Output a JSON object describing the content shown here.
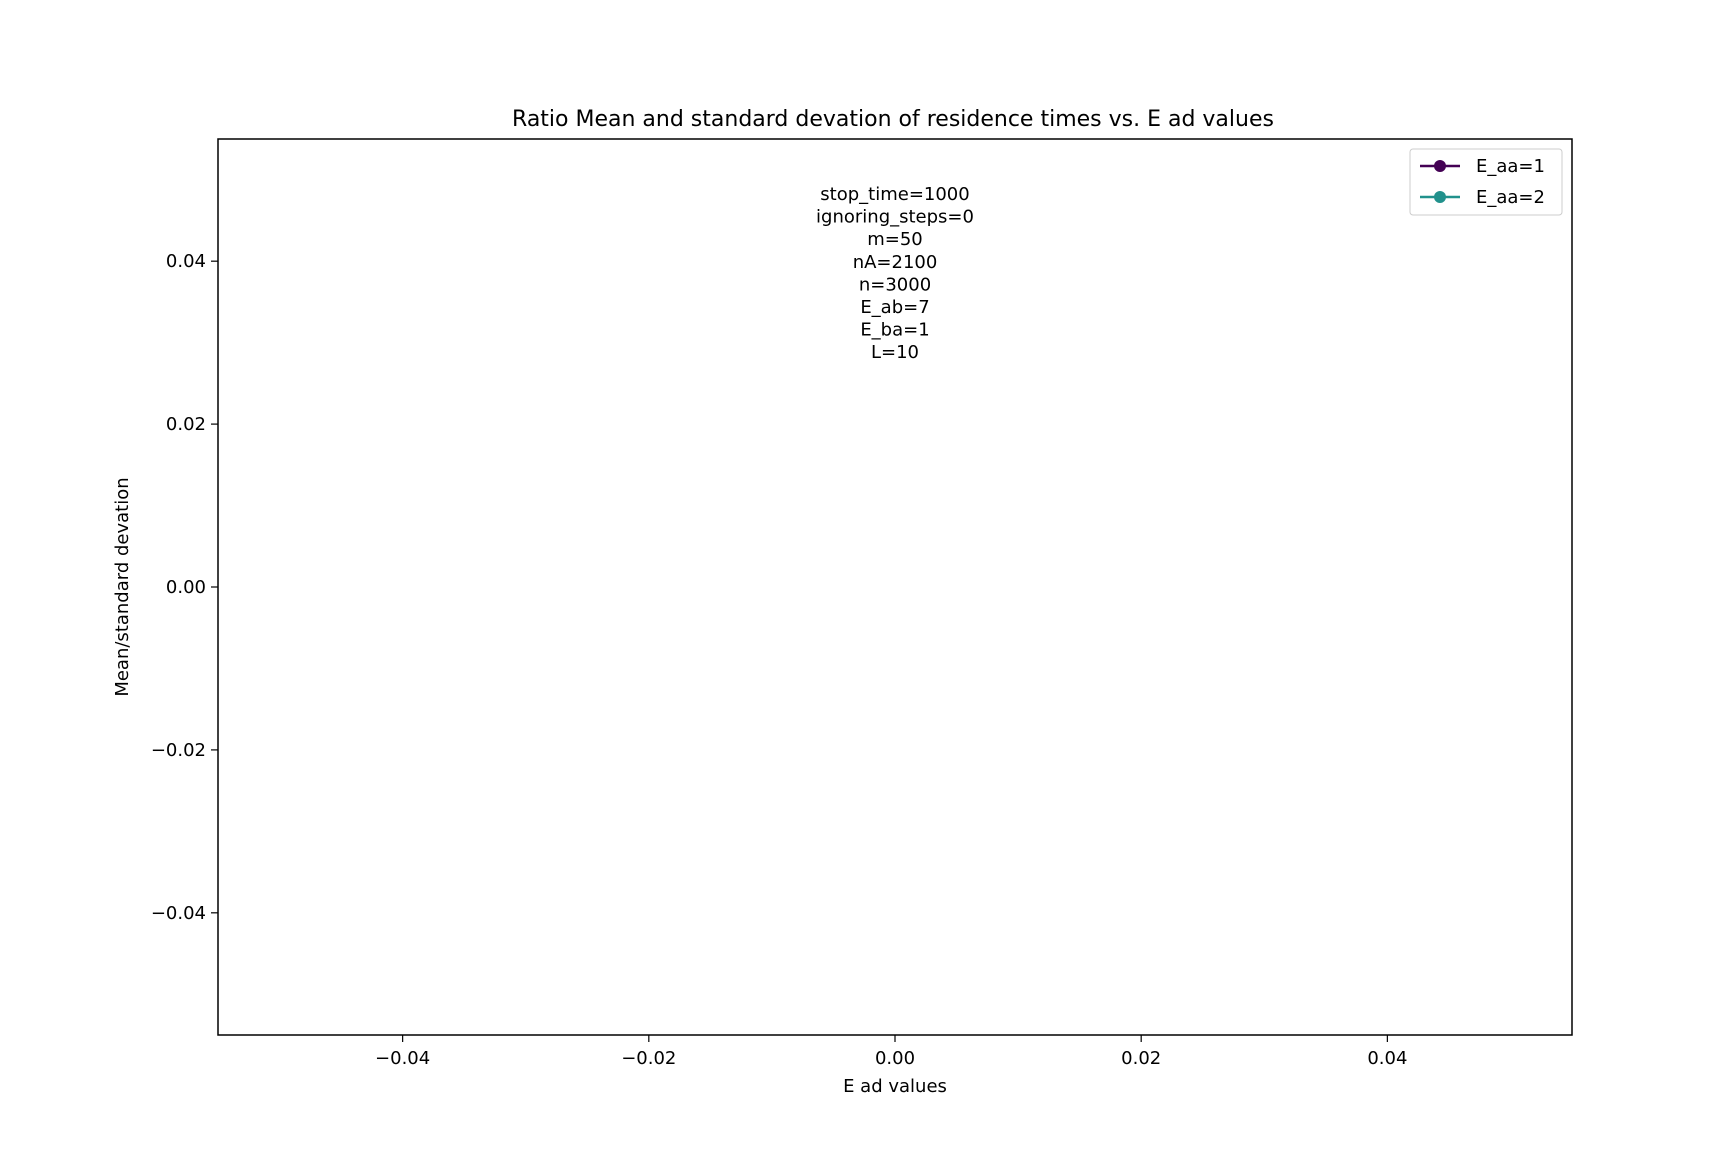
{
  "chart_data": {
    "type": "line",
    "title": "Ratio Mean and standard devation of residence times vs. E ad values",
    "xlabel": "E ad values",
    "ylabel": "Mean/standard devation",
    "xlim": [
      -0.055,
      0.055
    ],
    "ylim": [
      -0.055,
      0.055
    ],
    "x_ticks": [
      -0.04,
      -0.02,
      0.0,
      0.02,
      0.04
    ],
    "x_tick_labels": [
      "−0.04",
      "−0.02",
      "0.00",
      "0.02",
      "0.04"
    ],
    "y_ticks": [
      0.04,
      0.02,
      0.0,
      -0.02,
      -0.04
    ],
    "y_tick_labels": [
      "0.04",
      "0.02",
      "0.00",
      "−0.02",
      "−0.04"
    ],
    "grid": false,
    "legend_position": "top-right",
    "annotation_lines": [
      "stop_time=1000",
      "ignoring_steps=0",
      "m=50",
      "nA=2100",
      "n=3000",
      "E_ab=7",
      "E_ba=1",
      "L=10"
    ],
    "series": [
      {
        "name": "E_aa=1",
        "color": "#440154",
        "marker": "circle",
        "x": [],
        "y": []
      },
      {
        "name": "E_aa=2",
        "color": "#21918c",
        "marker": "circle",
        "x": [],
        "y": []
      }
    ]
  }
}
